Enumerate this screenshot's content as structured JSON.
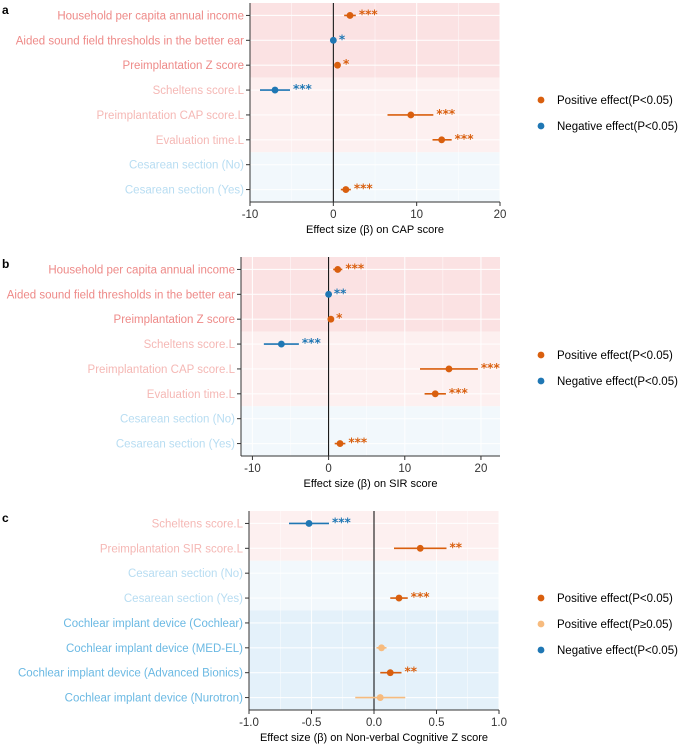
{
  "colors": {
    "positive": "#D95F0E",
    "positive_ns": "#F7BB7E",
    "negative": "#1F77B4",
    "label_red": "#EE8A88",
    "label_pink": "#F5B8B5",
    "label_lightblue": "#B8DDF2",
    "label_blue": "#6BB9E3",
    "band_red": "#FBE2E3",
    "band_pink": "#FDF0F0",
    "band_lightblue": "#F2F8FC",
    "band_blue": "#E4F1FA"
  },
  "chart_data": [
    {
      "type": "forest",
      "panel_label": "a",
      "xlabel": "Effect size (β) on CAP score",
      "xlim": [
        -10,
        20
      ],
      "xticks": [
        -10,
        0,
        10,
        20
      ],
      "xtick_labels": [
        "-10",
        "0",
        "10",
        "20"
      ],
      "legend": [
        {
          "label": "Positive effect(P<0.05)",
          "color": "positive"
        },
        {
          "label": "Negative effect(P<0.05)",
          "color": "negative"
        }
      ],
      "rows": [
        {
          "label": "Household per capita annual income",
          "group": "red",
          "est": 2.0,
          "lo": 1.3,
          "hi": 2.7,
          "sig": "***",
          "color": "positive"
        },
        {
          "label": "Aided sound field thresholds in the better ear",
          "group": "red",
          "est": 0.0,
          "lo": -0.3,
          "hi": 0.3,
          "sig": "*",
          "color": "negative"
        },
        {
          "label": "Preimplantation Z score",
          "group": "red",
          "est": 0.5,
          "lo": 0.2,
          "hi": 0.8,
          "sig": "*",
          "color": "positive"
        },
        {
          "label": "Scheltens score.L",
          "group": "pink",
          "est": -7.0,
          "lo": -8.8,
          "hi": -5.2,
          "sig": "***",
          "color": "negative"
        },
        {
          "label": "Preimplantation CAP score.L",
          "group": "pink",
          "est": 9.3,
          "lo": 6.5,
          "hi": 12.0,
          "sig": "***",
          "color": "positive"
        },
        {
          "label": "Evaluation time.L",
          "group": "pink",
          "est": 13.0,
          "lo": 11.9,
          "hi": 14.2,
          "sig": "***",
          "color": "positive"
        },
        {
          "label": "Cesarean section (No)",
          "group": "lightblue",
          "est": null,
          "lo": null,
          "hi": null,
          "sig": "",
          "color": "positive"
        },
        {
          "label": "Cesarean section (Yes)",
          "group": "lightblue",
          "est": 1.5,
          "lo": 0.9,
          "hi": 2.1,
          "sig": "***",
          "color": "positive"
        }
      ]
    },
    {
      "type": "forest",
      "panel_label": "b",
      "xlabel": "Effect size (β) on SIR score",
      "xlim": [
        -11.5,
        22.5
      ],
      "xticks": [
        -10,
        0,
        10,
        20
      ],
      "xtick_labels": [
        "-10",
        "0",
        "10",
        "20"
      ],
      "legend": [
        {
          "label": "Positive effect(P<0.05)",
          "color": "positive"
        },
        {
          "label": "Negative effect(P<0.05)",
          "color": "negative"
        }
      ],
      "rows": [
        {
          "label": "Household per capita annual income",
          "group": "red",
          "est": 1.2,
          "lo": 0.6,
          "hi": 1.8,
          "sig": "***",
          "color": "positive"
        },
        {
          "label": "Aided sound field thresholds in the better ear",
          "group": "red",
          "est": 0.0,
          "lo": -0.3,
          "hi": 0.3,
          "sig": "**",
          "color": "negative"
        },
        {
          "label": "Preimplantation Z score",
          "group": "red",
          "est": 0.3,
          "lo": 0.0,
          "hi": 0.6,
          "sig": "*",
          "color": "positive"
        },
        {
          "label": "Scheltens score.L",
          "group": "pink",
          "est": -6.2,
          "lo": -8.5,
          "hi": -3.9,
          "sig": "***",
          "color": "negative"
        },
        {
          "label": "Preimplantation CAP score.L",
          "group": "pink",
          "est": 15.8,
          "lo": 12.0,
          "hi": 19.6,
          "sig": "***",
          "color": "positive"
        },
        {
          "label": "Evaluation time.L",
          "group": "pink",
          "est": 14.0,
          "lo": 12.6,
          "hi": 15.4,
          "sig": "***",
          "color": "positive"
        },
        {
          "label": "Cesarean section (No)",
          "group": "lightblue",
          "est": null,
          "lo": null,
          "hi": null,
          "sig": "",
          "color": "positive"
        },
        {
          "label": "Cesarean section (Yes)",
          "group": "lightblue",
          "est": 1.5,
          "lo": 0.8,
          "hi": 2.2,
          "sig": "***",
          "color": "positive"
        }
      ]
    },
    {
      "type": "forest",
      "panel_label": "c",
      "xlabel": "Effect size (β) on Non-verbal Cognitive Z score",
      "xlim": [
        -1.0,
        1.0
      ],
      "xticks": [
        -1.0,
        -0.5,
        0.0,
        0.5,
        1.0
      ],
      "xtick_labels": [
        "-1.0",
        "-0.5",
        "0.0",
        "0.5",
        "1.0"
      ],
      "legend": [
        {
          "label": "Positive effect(P<0.05)",
          "color": "positive"
        },
        {
          "label": "Positive effect(P≥0.05)",
          "color": "positive_ns"
        },
        {
          "label": "Negative effect(P<0.05)",
          "color": "negative"
        }
      ],
      "rows": [
        {
          "label": "Scheltens score.L",
          "group": "pink",
          "est": -0.52,
          "lo": -0.68,
          "hi": -0.36,
          "sig": "***",
          "color": "negative"
        },
        {
          "label": "Preimplantation SIR score.L",
          "group": "pink",
          "est": 0.37,
          "lo": 0.16,
          "hi": 0.58,
          "sig": "**",
          "color": "positive"
        },
        {
          "label": "Cesarean section (No)",
          "group": "lightblue",
          "est": null,
          "lo": null,
          "hi": null,
          "sig": "",
          "color": "positive"
        },
        {
          "label": "Cesarean section (Yes)",
          "group": "lightblue",
          "est": 0.2,
          "lo": 0.13,
          "hi": 0.27,
          "sig": "***",
          "color": "positive"
        },
        {
          "label": "Cochlear implant device (Cochlear)",
          "group": "blue",
          "est": null,
          "lo": null,
          "hi": null,
          "sig": "",
          "color": "positive"
        },
        {
          "label": "Cochlear implant device (MED-EL)",
          "group": "blue",
          "est": 0.06,
          "lo": 0.02,
          "hi": 0.1,
          "sig": "",
          "color": "positive_ns"
        },
        {
          "label": "Cochlear implant device (Advanced Bionics)",
          "group": "blue",
          "est": 0.13,
          "lo": 0.05,
          "hi": 0.22,
          "sig": "**",
          "color": "positive"
        },
        {
          "label": "Cochlear implant device (Nurotron)",
          "group": "blue",
          "est": 0.05,
          "lo": -0.15,
          "hi": 0.25,
          "sig": "",
          "color": "positive_ns"
        }
      ]
    }
  ]
}
